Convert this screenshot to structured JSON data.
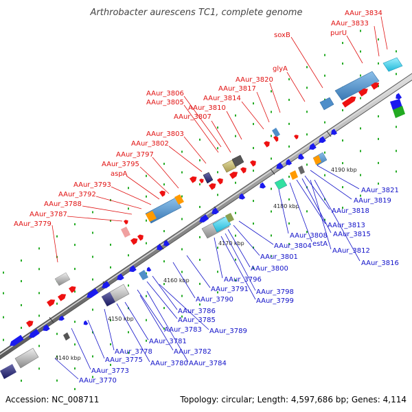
{
  "title": "Arthrobacter aurescens TC1, complete genome",
  "footer": {
    "accession": "Accession: NC_008711",
    "summary": "Topology: circular; Length: 4,597,686 bp; Genes: 4,114"
  },
  "ticks": [
    "4140 kbp",
    "4150 kbp",
    "4160 kbp",
    "4170 kbp",
    "4180 kbp",
    "4190 kbp"
  ],
  "forward_labels": [
    "AAur_3834",
    "AAur_3833",
    "purU",
    "soxB",
    "glyA",
    "AAur_3820",
    "AAur_3817",
    "AAur_3814",
    "AAur_3806",
    "AAur_3805",
    "AAur_3810",
    "AAur_3807",
    "AAur_3803",
    "AAur_3802",
    "AAur_3797",
    "AAur_3795",
    "aspA",
    "AAur_3793",
    "AAur_3792",
    "AAur_3788",
    "AAur_3787",
    "AAur_3779"
  ],
  "reverse_labels": [
    "AAur_3821",
    "AAur_3819",
    "AAur_3818",
    "AAur_3813",
    "AAur_3815",
    "AAur_3808",
    "estA",
    "AAur_3812",
    "AAur_3816",
    "AAur_3804",
    "AAur_3801",
    "AAur_3800",
    "AAur_3796",
    "AAur_3798",
    "AAur_3799",
    "AAur_3791",
    "AAur_3790",
    "AAur_3786",
    "AAur_3785",
    "AAur_3783",
    "AAur_3789",
    "AAur_3781",
    "AAur_3782",
    "AAur_3784",
    "AAur_3778",
    "AAur_3775",
    "AAur_3780",
    "AAur_3773",
    "AAur_3770"
  ],
  "colors": {
    "forward_gene": "#ee1111",
    "reverse_gene": "#1a1aee",
    "backbone": "#8a8a8a",
    "label_forward": "#e01010",
    "label_reverse": "#1010c8",
    "operon_blue": "#4f8ec9",
    "cyan": "#33ccee",
    "orange": "#ff9a00",
    "green": "#22aa22"
  }
}
